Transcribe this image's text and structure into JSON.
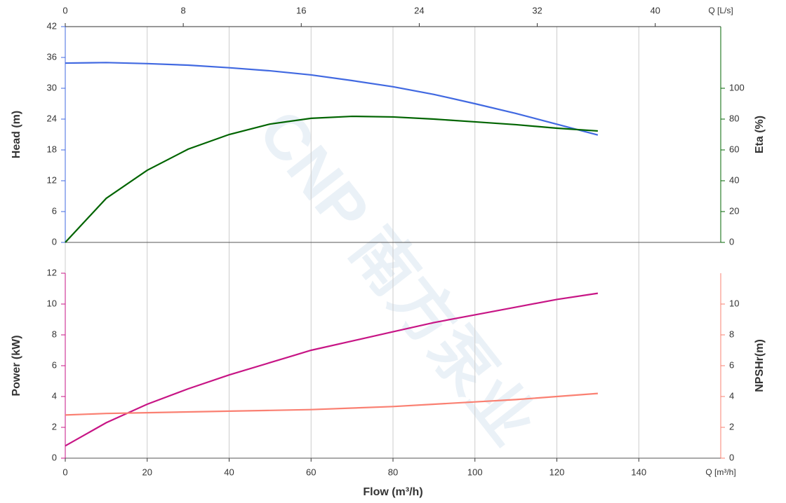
{
  "watermark": "CNP 南方泵业",
  "chart_data": [
    {
      "type": "line",
      "x2label": "Q [L/s]",
      "x2lim": [
        0,
        44.44
      ],
      "x2ticks": [
        0,
        8,
        16,
        24,
        32,
        40
      ],
      "xlim": [
        0,
        160
      ],
      "ylabel": "Head (m)",
      "ylim": [
        0,
        42
      ],
      "yticks": [
        0,
        6,
        12,
        18,
        24,
        30,
        36,
        42
      ],
      "ycolor": "#4169e1",
      "y2label": "Eta (%)",
      "y2lim": [
        0,
        140
      ],
      "y2ticks": [
        0,
        20,
        40,
        60,
        80,
        100
      ],
      "y2color": "#006400",
      "x": [
        0,
        10,
        20,
        30,
        40,
        50,
        60,
        70,
        80,
        90,
        100,
        110,
        120,
        130
      ],
      "series": [
        {
          "color": "#4169e1",
          "values": [
            34.9,
            35.0,
            34.8,
            34.5,
            34.0,
            33.4,
            32.6,
            31.5,
            30.3,
            28.8,
            27.0,
            25.1,
            23.0,
            20.9
          ]
        },
        {
          "color": "#006400",
          "axis": "y2",
          "values": [
            0,
            28.6,
            46.8,
            60.5,
            70,
            76.8,
            80.5,
            81.8,
            81.4,
            80,
            78.2,
            76.4,
            74.1,
            72.3
          ]
        }
      ]
    },
    {
      "type": "line",
      "xlabel": "Flow (m³/h)",
      "xunit": "Q [m³/h]",
      "xlim": [
        0,
        160
      ],
      "xticks": [
        0,
        20,
        40,
        60,
        80,
        100,
        120,
        140
      ],
      "ylabel": "Power (kW)",
      "ylim": [
        0,
        12
      ],
      "yticks": [
        0,
        2,
        4,
        6,
        8,
        10,
        12
      ],
      "ycolor": "#c71585",
      "y2label": "NPSHr(m)",
      "y2lim": [
        0,
        12
      ],
      "y2ticks": [
        0,
        2,
        4,
        6,
        8,
        10
      ],
      "y2color": "#fa8072",
      "x": [
        0,
        10,
        20,
        30,
        40,
        50,
        60,
        70,
        80,
        90,
        100,
        110,
        120,
        130
      ],
      "series": [
        {
          "color": "#c71585",
          "values": [
            0.8,
            2.3,
            3.5,
            4.5,
            5.4,
            6.2,
            7.0,
            7.6,
            8.2,
            8.8,
            9.3,
            9.8,
            10.3,
            10.7
          ]
        },
        {
          "color": "#fa8072",
          "axis": "y2",
          "values": [
            2.8,
            2.9,
            2.95,
            3.0,
            3.05,
            3.1,
            3.15,
            3.25,
            3.35,
            3.5,
            3.65,
            3.8,
            4.0,
            4.2
          ]
        }
      ]
    }
  ]
}
